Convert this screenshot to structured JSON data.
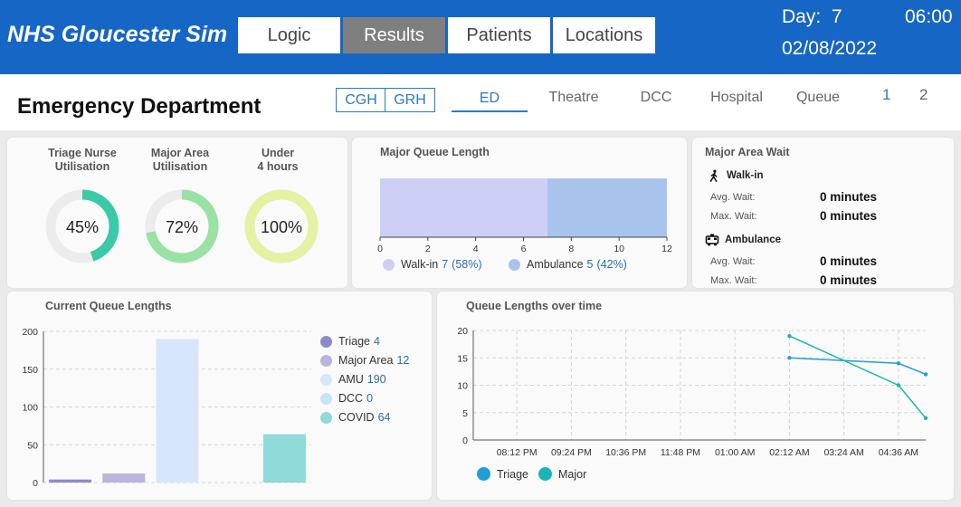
{
  "app": {
    "title": "NHS Gloucester Sim"
  },
  "nav": {
    "tabs": [
      "Logic",
      "Results",
      "Patients",
      "Locations"
    ],
    "active": "Results"
  },
  "clock": {
    "day_label": "Day:",
    "day": "7",
    "time": "06:00",
    "date": "02/08/2022"
  },
  "page": {
    "title": "Emergency Department"
  },
  "hospitals": [
    "CGH",
    "GRH"
  ],
  "subtabs": {
    "items": [
      "ED",
      "Theatre",
      "DCC",
      "Hospital",
      "Queue"
    ],
    "active": "ED"
  },
  "pages": [
    "1",
    "2"
  ],
  "colors": {
    "brand": "#1666c5",
    "triage_gauge": "#3cc9a8",
    "major_gauge": "#9ae1a4",
    "under4_gauge": "#e5f1a3"
  },
  "gauges": [
    {
      "title_line1": "Triage Nurse",
      "title_line2": "Utilisation",
      "value": 45,
      "label": "45%",
      "color": "#3cc9a8"
    },
    {
      "title_line1": "Major Area",
      "title_line2": "Utilisation",
      "value": 72,
      "label": "72%",
      "color": "#9ae1a4"
    },
    {
      "title_line1": "Under",
      "title_line2": "4 hours",
      "value": 100,
      "label": "100%",
      "color": "#e5f1a3"
    }
  ],
  "major_queue": {
    "title": "Major Queue Length",
    "chart_data": {
      "type": "bar",
      "orientation": "horizontal-stacked",
      "series": [
        {
          "name": "Walk-in",
          "value": 7,
          "pct": "(58%)",
          "color": "#cdcff7"
        },
        {
          "name": "Ambulance",
          "value": 5,
          "pct": "(42%)",
          "color": "#a9c4ec"
        }
      ],
      "ticks": [
        "0",
        "2",
        "4",
        "6",
        "8",
        "10",
        "12"
      ],
      "xlim": [
        0,
        12
      ]
    }
  },
  "major_wait": {
    "title": "Major Area Wait",
    "groups": [
      {
        "mode": "Walk-in",
        "icon": "walking-person-icon",
        "avg_label": "Avg. Wait:",
        "avg": "0 minutes",
        "max_label": "Max. Wait:",
        "max": "0 minutes"
      },
      {
        "mode": "Ambulance",
        "icon": "ambulance-icon",
        "avg_label": "Avg. Wait:",
        "avg": "0 minutes",
        "max_label": "Max. Wait:",
        "max": "0 minutes"
      }
    ]
  },
  "current_queues": {
    "title": "Current Queue Lengths",
    "chart_data": {
      "type": "bar",
      "categories": [
        "Triage",
        "Major Area",
        "AMU",
        "DCC",
        "COVID"
      ],
      "values": [
        4,
        12,
        190,
        0,
        64
      ],
      "colors": [
        "#8d8ac9",
        "#b9b5dd",
        "#d7e7fb",
        "#c6e4f4",
        "#8fd9d8"
      ],
      "ylim": [
        0,
        200
      ],
      "yticks": [
        "0",
        "50",
        "100",
        "150",
        "200"
      ]
    }
  },
  "queue_time": {
    "title": "Queue Lengths over time",
    "chart_data": {
      "type": "line",
      "xticks": [
        "08:12 PM",
        "09:24 PM",
        "10:36 PM",
        "11:48 PM",
        "01:00 AM",
        "02:12 AM",
        "03:24 AM",
        "04:36 AM"
      ],
      "yticks": [
        "0",
        "5",
        "10",
        "15",
        "20"
      ],
      "ylim": [
        0,
        20
      ],
      "x_hours": [
        20.2,
        21.4,
        22.6,
        23.8,
        25.0,
        26.2,
        27.4,
        28.6
      ],
      "xlim": [
        19.24,
        29.2
      ],
      "series": [
        {
          "name": "Triage",
          "color": "#1f9fd6",
          "x": [
            26.2,
            28.6,
            29.2
          ],
          "y": [
            15,
            14,
            12
          ]
        },
        {
          "name": "Major",
          "color": "#1ab6b6",
          "x": [
            26.2,
            28.6,
            29.2
          ],
          "y": [
            19,
            10,
            4
          ]
        }
      ]
    }
  }
}
